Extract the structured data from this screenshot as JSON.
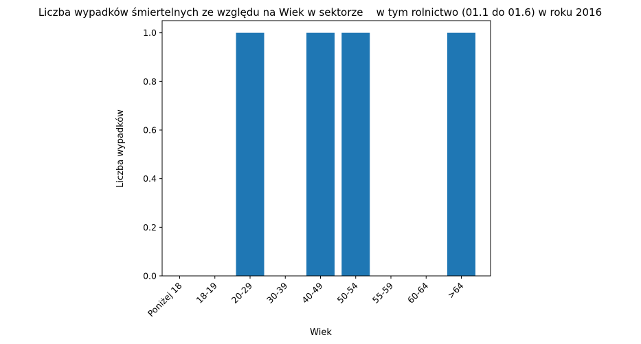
{
  "chart_data": {
    "type": "bar",
    "title": "Liczba wypadków śmiertelnych ze względu na Wiek w sektorze    w tym rolnictwo (01.1 do 01.6) w roku 2016",
    "xlabel": "Wiek",
    "ylabel": "Liczba wypadków",
    "categories": [
      "Poniżej 18",
      "18-19",
      "20-29",
      "30-39",
      "40-49",
      "50-54",
      "55-59",
      "60-64",
      ">64"
    ],
    "values": [
      0,
      0,
      1,
      0,
      1,
      1,
      0,
      0,
      1
    ],
    "ylim": [
      0,
      1.05
    ],
    "yticks": [
      "0.0",
      "0.2",
      "0.4",
      "0.6",
      "0.8",
      "1.0"
    ],
    "grid": false,
    "bar_color": "#1f77b4"
  }
}
